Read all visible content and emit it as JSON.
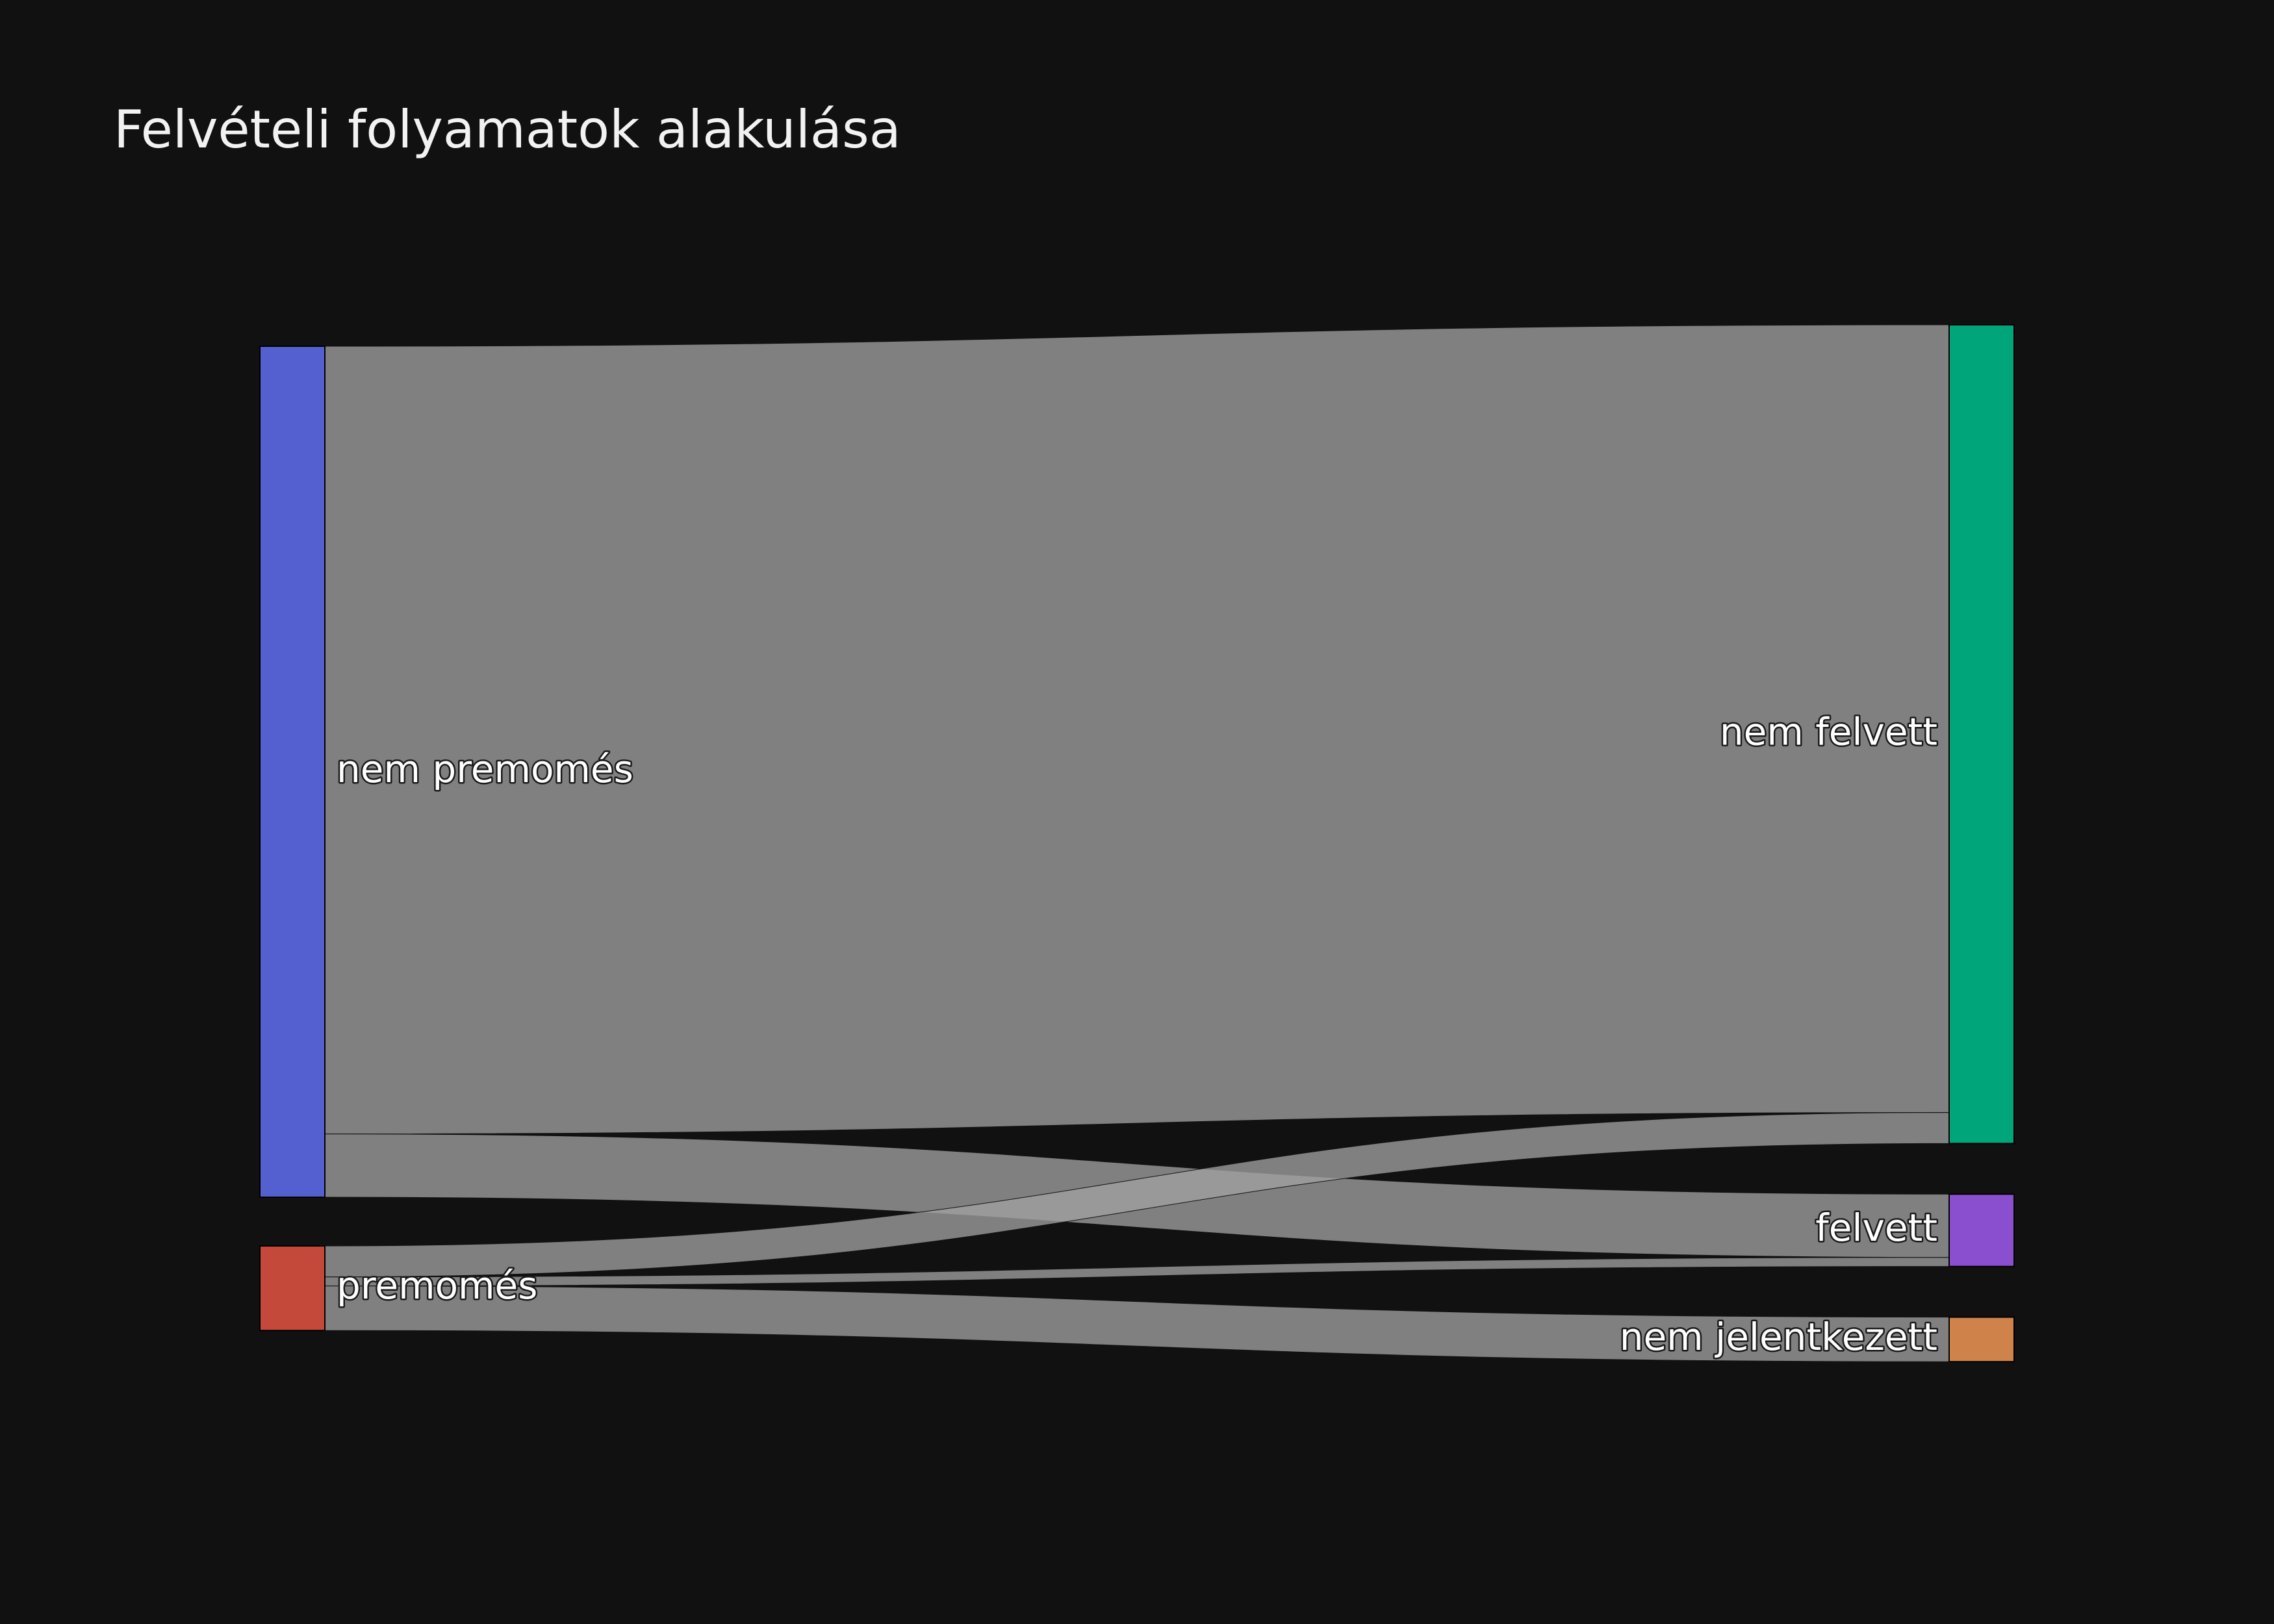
{
  "chart_data": {
    "type": "sankey",
    "title": "Felvételi folyamatok alakulása",
    "nodes": [
      {
        "id": "nem_premomes",
        "label": "nem premomés",
        "column": 0,
        "color": "#5560d0"
      },
      {
        "id": "premomes",
        "label": "premomés",
        "column": 0,
        "color": "#c4493a"
      },
      {
        "id": "nem_felvett",
        "label": "nem felvett",
        "column": 1,
        "color": "#00a57a"
      },
      {
        "id": "felvett",
        "label": "felvett",
        "column": 1,
        "color": "#8a4fcf"
      },
      {
        "id": "nem_jelentkezett",
        "label": "nem jelentkezett",
        "column": 1,
        "color": "#cf824a"
      }
    ],
    "links": [
      {
        "source": "nem_premomes",
        "target": "nem_felvett",
        "value": 1220
      },
      {
        "source": "nem_premomes",
        "target": "felvett",
        "value": 98
      },
      {
        "source": "premomes",
        "target": "nem_felvett",
        "value": 48
      },
      {
        "source": "premomes",
        "target": "felvett",
        "value": 14
      },
      {
        "source": "premomes",
        "target": "nem_jelentkezett",
        "value": 69
      }
    ],
    "link_color": "#a0a0a0",
    "background": "#111111"
  }
}
